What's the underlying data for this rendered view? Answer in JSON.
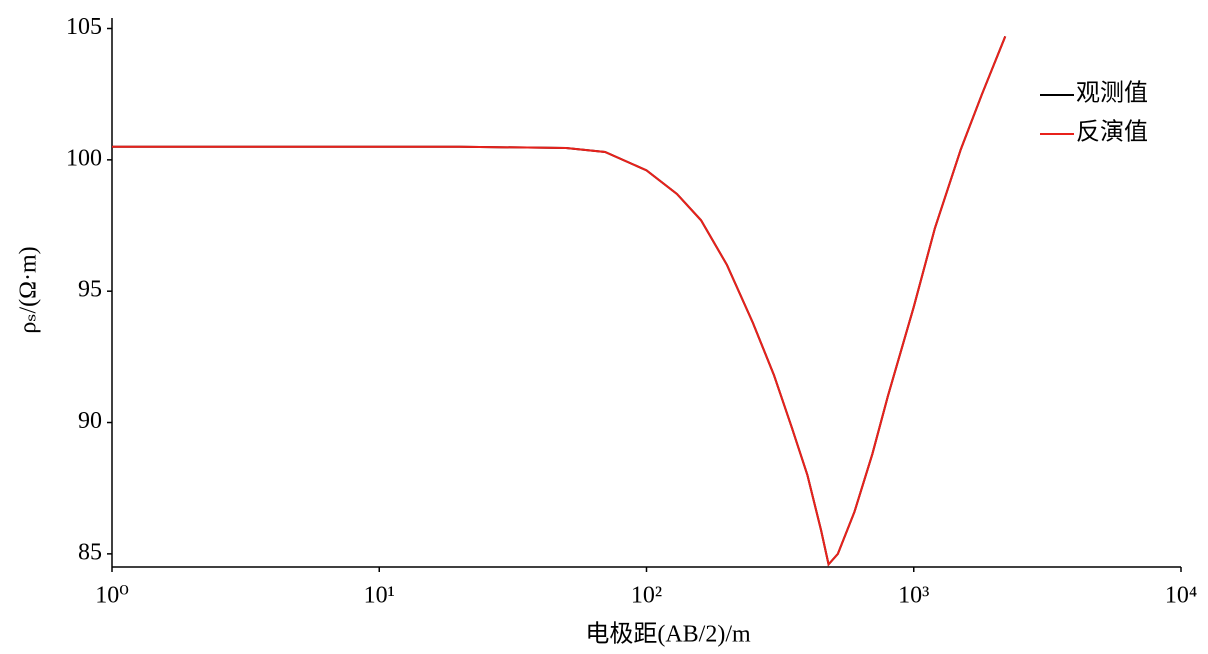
{
  "chart_data": {
    "type": "line",
    "x": [
      1,
      2,
      5,
      10,
      20,
      50,
      70,
      100,
      130,
      160,
      200,
      250,
      300,
      350,
      400,
      450,
      480,
      520,
      600,
      700,
      800,
      1000,
      1200,
      1500,
      1800,
      2200
    ],
    "series": [
      {
        "name": "观测值",
        "color": "#000000",
        "values": [
          100.5,
          100.5,
          100.5,
          100.5,
          100.5,
          100.45,
          100.3,
          99.6,
          98.7,
          97.7,
          96.0,
          93.8,
          91.8,
          89.8,
          88.0,
          85.9,
          84.6,
          85.0,
          86.6,
          88.8,
          91.0,
          94.4,
          97.4,
          100.4,
          102.5,
          104.7
        ]
      },
      {
        "name": "反演值",
        "color": "#e8211b",
        "values": [
          100.5,
          100.5,
          100.5,
          100.5,
          100.5,
          100.45,
          100.3,
          99.6,
          98.7,
          97.7,
          96.0,
          93.8,
          91.8,
          89.8,
          88.0,
          85.9,
          84.6,
          85.0,
          86.6,
          88.8,
          91.0,
          94.4,
          97.4,
          100.4,
          102.5,
          104.7
        ]
      }
    ],
    "xlabel": "电极距(AB/2)/m",
    "ylabel": "ρₛ/(Ω·m)",
    "xscale": "log",
    "xlim": [
      1,
      10000
    ],
    "xticks": [
      {
        "value": 1,
        "label": "10⁰"
      },
      {
        "value": 10,
        "label": "10¹"
      },
      {
        "value": 100,
        "label": "10²"
      },
      {
        "value": 1000,
        "label": "10³"
      },
      {
        "value": 10000,
        "label": "10⁴"
      }
    ],
    "ylim": [
      84.5,
      105.4
    ],
    "yticks": [
      85,
      90,
      95,
      100,
      105
    ],
    "grid": false,
    "legend": "upper right"
  }
}
